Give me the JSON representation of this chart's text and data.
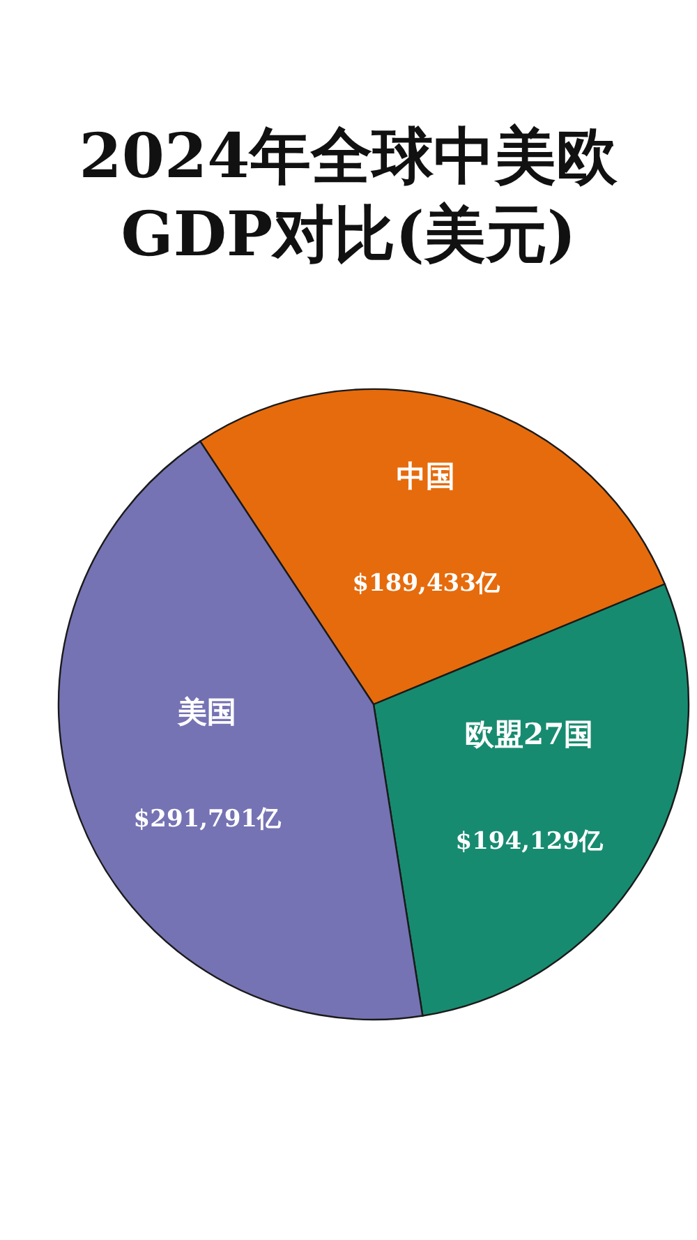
{
  "chart_data": {
    "type": "pie",
    "title": "2024年全球中美欧\nGDP对比(美元)",
    "categories": [
      "中国",
      "欧盟27国",
      "美国"
    ],
    "values": [
      189433,
      194129,
      291791
    ],
    "colors": [
      "#e66b0c",
      "#178b70",
      "#7573b4"
    ],
    "value_labels": [
      "$189,433亿",
      "$194,129亿",
      "$291,791亿"
    ],
    "legend": false
  }
}
